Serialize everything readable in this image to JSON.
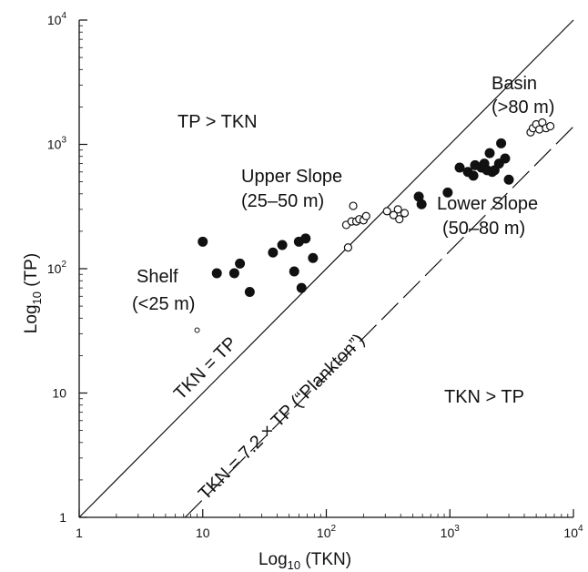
{
  "chart_data": {
    "type": "scatter",
    "xlabel": "Log10 (TKN)",
    "ylabel": "Log10 (TP)",
    "xscale": "log",
    "yscale": "log",
    "xlim": [
      1,
      10000
    ],
    "ylim": [
      1,
      10000
    ],
    "grid": false,
    "x_ticks": [
      {
        "value": 1,
        "label": "1"
      },
      {
        "value": 10,
        "label": "10"
      },
      {
        "value": 100,
        "label": "10",
        "exp": "2"
      },
      {
        "value": 1000,
        "label": "10",
        "exp": "3"
      },
      {
        "value": 10000,
        "label": "10",
        "exp": "4"
      }
    ],
    "y_ticks": [
      {
        "value": 1,
        "label": "1"
      },
      {
        "value": 10,
        "label": "10"
      },
      {
        "value": 100,
        "label": "10",
        "exp": "2"
      },
      {
        "value": 1000,
        "label": "10",
        "exp": "3"
      },
      {
        "value": 10000,
        "label": "10",
        "exp": "4"
      }
    ],
    "reference_lines": [
      {
        "label": "TKN = TP",
        "slope_factor": 1,
        "style": "solid"
      },
      {
        "label": "TKN = 7.2 × TP (“Plankton”)",
        "slope_factor": 7.2,
        "style": "dashed"
      }
    ],
    "region_labels": [
      "TP > TKN",
      "TKN > TP"
    ],
    "group_labels": [
      {
        "lines": [
          "Shelf",
          "(<25 m)"
        ]
      },
      {
        "lines": [
          "Upper Slope",
          "(25–50 m)"
        ]
      },
      {
        "lines": [
          "Lower Slope",
          "(50–80 m)"
        ]
      },
      {
        "lines": [
          "Basin",
          "(>80 m)"
        ]
      }
    ],
    "series": [
      {
        "marker": "filled-circle",
        "points": [
          [
            10,
            165
          ],
          [
            13,
            92
          ],
          [
            18,
            92
          ],
          [
            20,
            110
          ],
          [
            24,
            65
          ],
          [
            37,
            135
          ],
          [
            44,
            155
          ],
          [
            55,
            95
          ],
          [
            60,
            165
          ],
          [
            63,
            70
          ],
          [
            68,
            175
          ],
          [
            78,
            122
          ],
          [
            560,
            380
          ],
          [
            590,
            330
          ],
          [
            960,
            410
          ],
          [
            1200,
            650
          ],
          [
            1400,
            600
          ],
          [
            1550,
            560
          ],
          [
            1600,
            680
          ],
          [
            1800,
            650
          ],
          [
            1900,
            700
          ],
          [
            2000,
            620
          ],
          [
            2100,
            850
          ],
          [
            2200,
            600
          ],
          [
            2300,
            620
          ],
          [
            2500,
            700
          ],
          [
            2600,
            1020
          ],
          [
            2800,
            770
          ],
          [
            3000,
            520
          ]
        ]
      },
      {
        "marker": "open-circle",
        "points": [
          [
            145,
            225
          ],
          [
            150,
            148
          ],
          [
            160,
            240
          ],
          [
            165,
            320
          ],
          [
            175,
            240
          ],
          [
            185,
            250
          ],
          [
            200,
            245
          ],
          [
            210,
            265
          ],
          [
            310,
            290
          ],
          [
            350,
            270
          ],
          [
            380,
            300
          ],
          [
            390,
            250
          ],
          [
            430,
            280
          ],
          [
            4500,
            1250
          ],
          [
            4700,
            1350
          ],
          [
            5000,
            1450
          ],
          [
            5300,
            1320
          ],
          [
            5600,
            1500
          ],
          [
            6000,
            1350
          ],
          [
            6500,
            1400
          ]
        ]
      },
      {
        "marker": "small-open",
        "points": [
          [
            9,
            32
          ]
        ]
      }
    ]
  }
}
